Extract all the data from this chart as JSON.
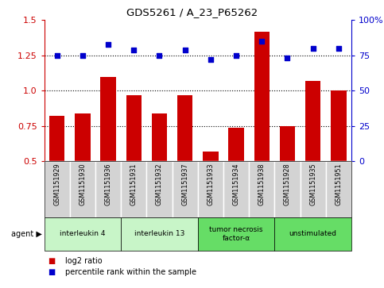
{
  "title": "GDS5261 / A_23_P65262",
  "samples": [
    "GSM1151929",
    "GSM1151930",
    "GSM1151936",
    "GSM1151931",
    "GSM1151932",
    "GSM1151937",
    "GSM1151933",
    "GSM1151934",
    "GSM1151938",
    "GSM1151928",
    "GSM1151935",
    "GSM1151951"
  ],
  "log2_ratio": [
    0.82,
    0.84,
    1.1,
    0.97,
    0.84,
    0.97,
    0.57,
    0.74,
    1.42,
    0.75,
    1.07,
    1.0
  ],
  "percentile_rank": [
    75,
    75,
    83,
    79,
    75,
    79,
    72,
    75,
    85,
    73,
    80,
    80
  ],
  "bar_color": "#cc0000",
  "dot_color": "#0000cc",
  "ylim_left": [
    0.5,
    1.5
  ],
  "ylim_right": [
    0,
    100
  ],
  "yticks_left": [
    0.5,
    0.75,
    1.0,
    1.25,
    1.5
  ],
  "yticks_right": [
    0,
    25,
    50,
    75,
    100
  ],
  "hlines": [
    0.75,
    1.0,
    1.25
  ],
  "bg_color_sample": "#d3d3d3",
  "agent_groups": [
    {
      "indices": [
        0,
        1,
        2
      ],
      "label": "interleukin 4",
      "color": "#c8f5c8"
    },
    {
      "indices": [
        3,
        4,
        5
      ],
      "label": "interleukin 13",
      "color": "#c8f5c8"
    },
    {
      "indices": [
        6,
        7,
        8
      ],
      "label": "tumor necrosis\nfactor-α",
      "color": "#66dd66"
    },
    {
      "indices": [
        9,
        10,
        11
      ],
      "label": "unstimulated",
      "color": "#66dd66"
    }
  ],
  "legend_items": [
    {
      "color": "#cc0000",
      "label": "log2 ratio"
    },
    {
      "color": "#0000cc",
      "label": "percentile rank within the sample"
    }
  ]
}
